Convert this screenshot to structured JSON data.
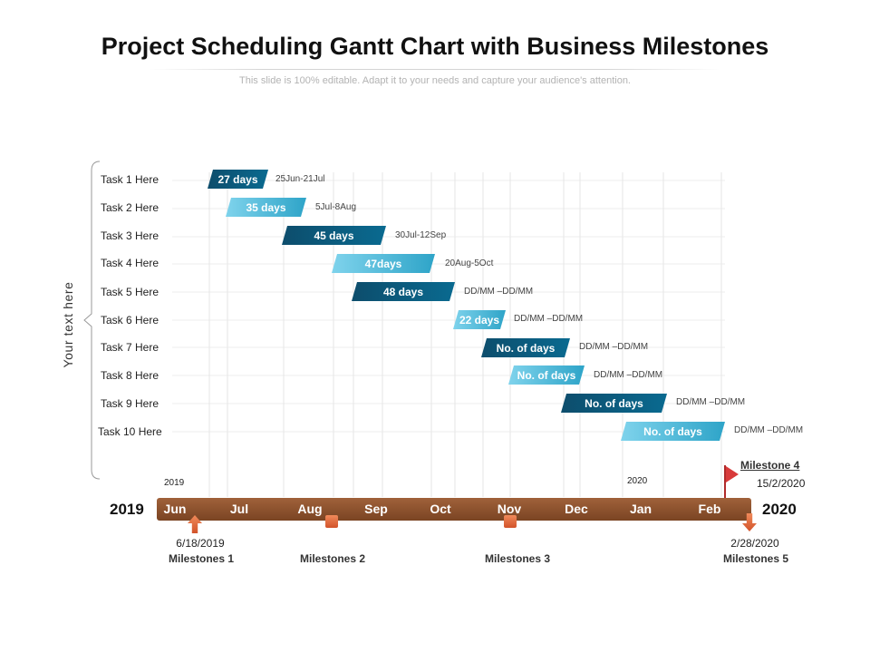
{
  "title": "Project Scheduling Gantt Chart with Business Milestones",
  "subtitle": "This slide is 100% editable. Adapt it to your needs and capture your audience's attention.",
  "side_label": "Your text here",
  "tasks": [
    {
      "label": "Task 1 Here",
      "bar": "27 days",
      "range": "25Jun-21Jul",
      "style": "dark"
    },
    {
      "label": "Task 2 Here",
      "bar": "35 days",
      "range": "5Jul-8Aug",
      "style": "light"
    },
    {
      "label": "Task 3 Here",
      "bar": "45 days",
      "range": "30Jul-12Sep",
      "style": "dark"
    },
    {
      "label": "Task 4 Here",
      "bar": "47days",
      "range": "20Aug-5Oct",
      "style": "light"
    },
    {
      "label": "Task 5 Here",
      "bar": "48 days",
      "range": "DD/MM   –DD/MM",
      "style": "dark"
    },
    {
      "label": "Task 6 Here",
      "bar": "22 days",
      "range": "DD/MM   –DD/MM",
      "style": "light"
    },
    {
      "label": "Task 7 Here",
      "bar": "No. of days",
      "range": "DD/MM   –DD/MM",
      "style": "dark"
    },
    {
      "label": "Task 8 Here",
      "bar": "No. of days",
      "range": "DD/MM   –DD/MM",
      "style": "light"
    },
    {
      "label": "Task 9 Here",
      "bar": "No. of days",
      "range": "DD/MM   –DD/MM",
      "style": "dark"
    },
    {
      "label": "Task 10 Here",
      "bar": "No. of days",
      "range": "DD/MM   –DD/MM",
      "style": "light"
    }
  ],
  "timeline": {
    "year_start_small": "2019",
    "year_end_small": "2020",
    "year_start": "2019",
    "year_end": "2020",
    "months": [
      "Jun",
      "Jul",
      "Aug",
      "Sep",
      "Oct",
      "Nov",
      "Dec",
      "Jan",
      "Feb"
    ]
  },
  "milestones": [
    {
      "name": "Milestones 1",
      "date": "6/18/2019"
    },
    {
      "name": "Milestones 2",
      "date": ""
    },
    {
      "name": "Milestones 3",
      "date": ""
    },
    {
      "name": "Milestone 4",
      "date": "15/2/2020"
    },
    {
      "name": "Milestones 5",
      "date": "2/28/2020"
    }
  ],
  "colors": {
    "bar_dark": "#0d4d6c",
    "bar_light": "#5cc3e2",
    "timeline": "#8b5230",
    "marker": "#e0673a",
    "flag": "#d83a3a"
  }
}
